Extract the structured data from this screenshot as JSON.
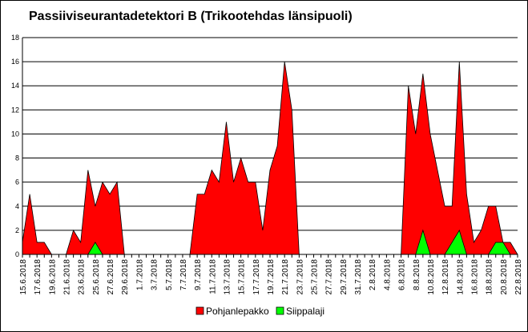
{
  "chart_data": {
    "type": "area",
    "title": "Passiiviseurantadetektori B (Trikootehdas länsipuoli)",
    "xlabel": "",
    "ylabel": "",
    "ylim": [
      0,
      18
    ],
    "yticks": [
      0,
      2,
      4,
      6,
      8,
      10,
      12,
      14,
      16,
      18
    ],
    "grid": true,
    "legend": "bottom",
    "x": [
      "15.6.2018",
      "16.6.2018",
      "17.6.2018",
      "18.6.2018",
      "19.6.2018",
      "20.6.2018",
      "21.6.2018",
      "22.6.2018",
      "23.6.2018",
      "24.6.2018",
      "25.6.2018",
      "26.6.2018",
      "27.6.2018",
      "28.6.2018",
      "29.6.2018",
      "30.6.2018",
      "1.7.2018",
      "2.7.2018",
      "3.7.2018",
      "4.7.2018",
      "5.7.2018",
      "6.7.2018",
      "7.7.2018",
      "8.7.2018",
      "9.7.2018",
      "10.7.2018",
      "11.7.2018",
      "12.7.2018",
      "13.7.2018",
      "14.7.2018",
      "15.7.2018",
      "16.7.2018",
      "17.7.2018",
      "18.7.2018",
      "19.7.2018",
      "20.7.2018",
      "21.7.2018",
      "22.7.2018",
      "23.7.2018",
      "24.7.2018",
      "25.7.2018",
      "26.7.2018",
      "27.7.2018",
      "28.7.2018",
      "29.7.2018",
      "30.7.2018",
      "31.7.2018",
      "1.8.2018",
      "2.8.2018",
      "3.8.2018",
      "4.8.2018",
      "5.8.2018",
      "6.8.2018",
      "7.8.2018",
      "8.8.2018",
      "9.8.2018",
      "10.8.2018",
      "11.8.2018",
      "12.8.2018",
      "13.8.2018",
      "14.8.2018",
      "15.8.2018",
      "16.8.2018",
      "17.8.2018",
      "18.8.2018",
      "19.8.2018",
      "20.8.2018",
      "21.8.2018",
      "22.8.2018"
    ],
    "xtick_labels": [
      "15.6.2018",
      "17.6.2018",
      "19.6.2018",
      "21.6.2018",
      "23.6.2018",
      "25.6.2018",
      "27.6.2018",
      "29.6.2018",
      "1.7.2018",
      "3.7.2018",
      "5.7.2018",
      "7.7.2018",
      "9.7.2018",
      "11.7.2018",
      "13.7.2018",
      "15.7.2018",
      "17.7.2018",
      "19.7.2018",
      "21.7.2018",
      "23.7.2018",
      "25.7.2018",
      "27.7.2018",
      "29.7.2018",
      "31.7.2018",
      "2.8.2018",
      "4.8.2018",
      "6.8.2018",
      "8.8.2018",
      "10.8.2018",
      "12.8.2018",
      "14.8.2018",
      "16.8.2018",
      "18.8.2018",
      "20.8.2018",
      "22.8.2018"
    ],
    "series": [
      {
        "name": "Pohjanlepakko",
        "color": "#ff0000",
        "values": [
          1,
          5,
          1,
          1,
          0,
          0,
          0,
          2,
          1,
          7,
          4,
          6,
          5,
          6,
          0,
          0,
          0,
          0,
          0,
          0,
          0,
          0,
          0,
          0,
          5,
          5,
          7,
          6,
          11,
          6,
          8,
          6,
          6,
          2,
          7,
          9,
          16,
          12,
          0,
          0,
          0,
          0,
          0,
          0,
          0,
          0,
          0,
          0,
          0,
          0,
          0,
          0,
          0,
          14,
          10,
          15,
          10,
          7,
          4,
          4,
          16,
          5,
          1,
          2,
          4,
          4,
          1,
          1,
          0
        ]
      },
      {
        "name": "Siippalaji",
        "color": "#00ff00",
        "values": [
          0,
          0,
          0,
          0,
          0,
          0,
          0,
          0,
          0,
          0,
          1,
          0,
          0,
          0,
          0,
          0,
          0,
          0,
          0,
          0,
          0,
          0,
          0,
          0,
          0,
          0,
          0,
          0,
          0,
          0,
          0,
          0,
          0,
          0,
          0,
          0,
          0,
          0,
          0,
          0,
          0,
          0,
          0,
          0,
          0,
          0,
          0,
          0,
          0,
          0,
          0,
          0,
          0,
          0,
          0,
          2,
          0,
          0,
          0,
          1,
          2,
          0,
          0,
          0,
          0,
          1,
          1,
          0,
          0
        ]
      }
    ]
  }
}
